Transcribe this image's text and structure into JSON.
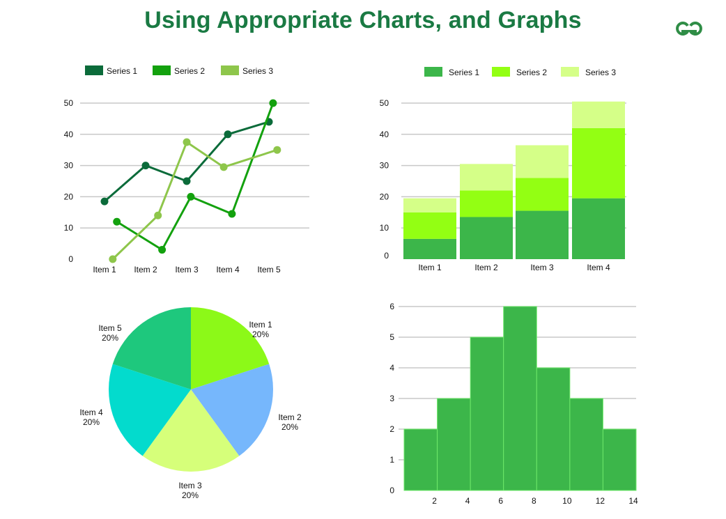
{
  "page": {
    "title": "Using Appropriate Charts, and Graphs",
    "logo_alt": "GfG",
    "colors": {
      "title": "#1a7a43",
      "logo": "#2f8d46",
      "grid": "#c8c8c8"
    }
  },
  "chart_data": [
    {
      "type": "line",
      "categories": [
        "Item 1",
        "Item 2",
        "Item 3",
        "Item 4",
        "Item 5"
      ],
      "series": [
        {
          "name": "Series 1",
          "color": "#0b6b3a",
          "points": [
            [
              1,
              18.5
            ],
            [
              2,
              30
            ],
            [
              3,
              25
            ],
            [
              4,
              40
            ],
            [
              5,
              44
            ]
          ]
        },
        {
          "name": "Series 2",
          "color": "#13a10e",
          "points": [
            [
              1.3,
              12
            ],
            [
              2.4,
              3
            ],
            [
              3.1,
              20
            ],
            [
              4.1,
              14.5
            ],
            [
              5.1,
              50
            ]
          ]
        },
        {
          "name": "Series 3",
          "color": "#8ec64b",
          "points": [
            [
              1.2,
              0
            ],
            [
              2.3,
              14
            ],
            [
              3,
              37.5
            ],
            [
              3.9,
              29.5
            ],
            [
              5.2,
              35
            ]
          ]
        }
      ],
      "ylim": [
        0,
        50
      ],
      "yticks": [
        0,
        10,
        20,
        30,
        40,
        50
      ],
      "title": "",
      "xlabel": "",
      "ylabel": "",
      "legend": "top"
    },
    {
      "type": "bar",
      "stacked": true,
      "categories": [
        "Item 1",
        "Item 2",
        "Item 3",
        "Item 4"
      ],
      "series": [
        {
          "name": "Series 1",
          "color": "#3cb64a",
          "values": [
            6.5,
            13.5,
            15.5,
            19.5
          ]
        },
        {
          "name": "Series 2",
          "color": "#93ff13",
          "values": [
            8.5,
            8.5,
            10.5,
            22.5
          ]
        },
        {
          "name": "Series 3",
          "color": "#d5ff88",
          "values": [
            4.5,
            8.5,
            10.5,
            8.5
          ]
        }
      ],
      "ylim": [
        0,
        50
      ],
      "yticks": [
        0,
        10,
        20,
        30,
        40,
        50
      ],
      "title": "",
      "xlabel": "",
      "ylabel": "",
      "legend": "top"
    },
    {
      "type": "pie",
      "slices": [
        {
          "label": "Item 1",
          "value": 20,
          "display": "20%",
          "color": "#8cf918"
        },
        {
          "label": "Item 2",
          "value": 20,
          "display": "20%",
          "color": "#76b7fc"
        },
        {
          "label": "Item 3",
          "value": 20,
          "display": "20%",
          "color": "#d6ff7a"
        },
        {
          "label": "Item 4",
          "value": 20,
          "display": "20%",
          "color": "#03dbcd"
        },
        {
          "label": "Item 5",
          "value": 20,
          "display": "20%",
          "color": "#1ec87d"
        }
      ],
      "title": ""
    },
    {
      "type": "histogram",
      "bins": [
        [
          0,
          2
        ],
        [
          2,
          4
        ],
        [
          4,
          6
        ],
        [
          6,
          8
        ],
        [
          8,
          10
        ],
        [
          10,
          12
        ],
        [
          12,
          14
        ]
      ],
      "counts": [
        2,
        3,
        5,
        6,
        4,
        3,
        2
      ],
      "xticks": [
        2,
        4,
        6,
        8,
        10,
        12,
        14
      ],
      "yticks": [
        0,
        1,
        2,
        3,
        4,
        5,
        6
      ],
      "ylim": [
        0,
        6
      ],
      "bar_color": "#3cb64a",
      "edge_color": "#6ee86a",
      "title": "",
      "xlabel": "",
      "ylabel": ""
    }
  ]
}
